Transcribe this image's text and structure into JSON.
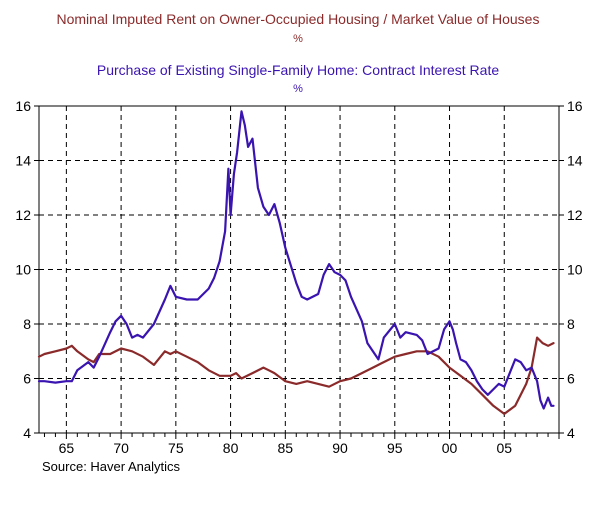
{
  "chart_data": {
    "type": "line",
    "title_lines": [
      {
        "text": "Nominal Imputed Rent on Owner-Occupied Housing / Market Value of Houses",
        "color": "#8b2a2a"
      },
      {
        "text": "%",
        "color": "#8b2a2a"
      },
      {
        "text": "Purchase of Existing Single-Family Home: Contract Interest Rate",
        "color": "#3a14b0"
      },
      {
        "text": "%",
        "color": "#3a14b0"
      }
    ],
    "source": "Source: Haver Analytics",
    "xlim": [
      1962.5,
      2010.0
    ],
    "ylim": [
      4,
      16
    ],
    "yticks": [
      4,
      6,
      8,
      10,
      12,
      14,
      16
    ],
    "xtick_labels": [
      {
        "x": 1965,
        "label": "65"
      },
      {
        "x": 1970,
        "label": "70"
      },
      {
        "x": 1975,
        "label": "75"
      },
      {
        "x": 1980,
        "label": "80"
      },
      {
        "x": 1985,
        "label": "85"
      },
      {
        "x": 1990,
        "label": "90"
      },
      {
        "x": 1995,
        "label": "95"
      },
      {
        "x": 2000,
        "label": "00"
      },
      {
        "x": 2005,
        "label": "05"
      }
    ],
    "grid": true,
    "series": [
      {
        "name": "Nominal Imputed Rent on Owner-Occupied Housing / Market Value of Houses",
        "color": "#8b2a2a",
        "x": [
          1962.5,
          1963,
          1964,
          1965,
          1965.5,
          1966,
          1967,
          1967.5,
          1968,
          1969,
          1970,
          1971,
          1972,
          1973,
          1974,
          1974.5,
          1975,
          1976,
          1977,
          1978,
          1979,
          1980,
          1980.5,
          1981,
          1982,
          1983,
          1983.5,
          1984,
          1985,
          1986,
          1987,
          1988,
          1989,
          1990,
          1991,
          1992,
          1993,
          1994,
          1995,
          1996,
          1997,
          1998,
          1999,
          2000,
          2001,
          2002,
          2003,
          2004,
          2005,
          2006,
          2007,
          2007.5,
          2008,
          2008.5,
          2009,
          2009.5
        ],
        "y": [
          6.8,
          6.9,
          7.0,
          7.1,
          7.2,
          7.0,
          6.7,
          6.6,
          6.9,
          6.9,
          7.1,
          7.0,
          6.8,
          6.5,
          7.0,
          6.9,
          7.0,
          6.8,
          6.6,
          6.3,
          6.1,
          6.1,
          6.2,
          6.0,
          6.2,
          6.4,
          6.3,
          6.2,
          5.9,
          5.8,
          5.9,
          5.8,
          5.7,
          5.9,
          6.0,
          6.2,
          6.4,
          6.6,
          6.8,
          6.9,
          7.0,
          7.0,
          6.8,
          6.4,
          6.1,
          5.8,
          5.4,
          5.0,
          4.7,
          5.0,
          5.8,
          6.4,
          7.5,
          7.3,
          7.2,
          7.3
        ]
      },
      {
        "name": "Purchase of Existing Single-Family Home: Contract Interest Rate",
        "color": "#3a14b0",
        "x": [
          1962.5,
          1963,
          1964,
          1965,
          1965.5,
          1966,
          1967,
          1967.5,
          1968,
          1969,
          1969.5,
          1970,
          1970.5,
          1971,
          1971.5,
          1972,
          1973,
          1974,
          1974.5,
          1975,
          1976,
          1977,
          1978,
          1978.5,
          1979,
          1979.5,
          1979.8,
          1980,
          1980.3,
          1980.6,
          1981,
          1981.3,
          1981.6,
          1982,
          1982.5,
          1983,
          1983.5,
          1984,
          1984.5,
          1985,
          1986,
          1986.5,
          1987,
          1988,
          1988.5,
          1989,
          1989.5,
          1990,
          1990.5,
          1991,
          1992,
          1992.5,
          1993,
          1993.5,
          1994,
          1995,
          1995.5,
          1996,
          1997,
          1997.5,
          1998,
          1999,
          1999.5,
          2000,
          2000.3,
          2000.6,
          2001,
          2001.5,
          2002,
          2002.5,
          2003,
          2003.5,
          2004,
          2004.5,
          2005,
          2005.5,
          2006,
          2006.5,
          2007,
          2007.5,
          2008,
          2008.3,
          2008.6,
          2009,
          2009.3,
          2009.5
        ],
        "y": [
          5.9,
          5.9,
          5.85,
          5.9,
          5.9,
          6.3,
          6.6,
          6.4,
          6.8,
          7.7,
          8.1,
          8.3,
          8.0,
          7.5,
          7.6,
          7.5,
          8.0,
          8.9,
          9.4,
          9.0,
          8.9,
          8.9,
          9.3,
          9.7,
          10.3,
          11.4,
          13.7,
          12.0,
          13.5,
          14.3,
          15.8,
          15.3,
          14.5,
          14.8,
          13.0,
          12.3,
          12.0,
          12.4,
          11.7,
          10.8,
          9.5,
          9.0,
          8.9,
          9.1,
          9.8,
          10.2,
          9.9,
          9.8,
          9.6,
          9.0,
          8.1,
          7.3,
          7.0,
          6.7,
          7.5,
          8.0,
          7.5,
          7.7,
          7.6,
          7.4,
          6.9,
          7.1,
          7.8,
          8.1,
          7.8,
          7.3,
          6.7,
          6.6,
          6.3,
          5.9,
          5.6,
          5.4,
          5.6,
          5.8,
          5.7,
          6.2,
          6.7,
          6.6,
          6.3,
          6.4,
          5.9,
          5.2,
          4.9,
          5.3,
          5.0,
          5.0
        ]
      }
    ]
  }
}
